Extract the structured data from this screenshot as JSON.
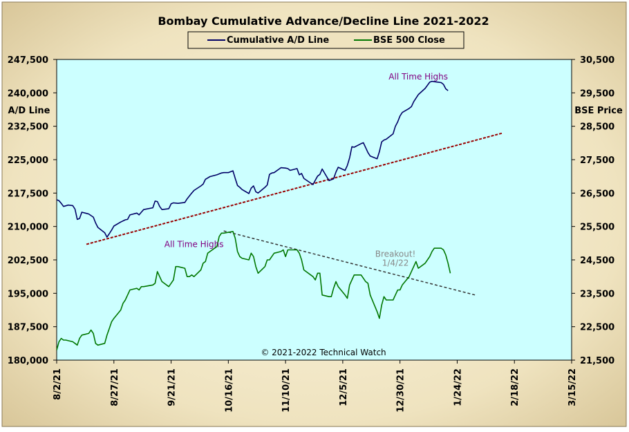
{
  "chart_data": {
    "type": "line",
    "title": "Bombay Cumulative Advance/Decline Line 2021-2022",
    "left_axis_label": "A/D Line",
    "right_axis_label": "BSE Price",
    "left_ylim": [
      180000,
      247500
    ],
    "right_ylim": [
      21500,
      30500
    ],
    "left_ticks": [
      "180,000",
      "187,500",
      "195,000",
      "202,500",
      "210,000",
      "217,500",
      "225,000",
      "232,500",
      "240,000",
      "247,500"
    ],
    "right_ticks": [
      "21,500",
      "22,500",
      "23,500",
      "24,500",
      "25,500",
      "26,500",
      "27,500",
      "28,500",
      "29,500",
      "30,500"
    ],
    "x_ticks": [
      "8/2/21",
      "8/27/21",
      "9/21/21",
      "10/16/21",
      "11/10/21",
      "12/5/21",
      "12/30/21",
      "1/24/22",
      "2/18/22",
      "3/15/22"
    ],
    "x_range": [
      "2021-08-02",
      "2022-03-15"
    ],
    "legend_position": "top-center",
    "grid": false,
    "colors": {
      "background": "#f0e6c8",
      "plot_background": "#ccffff",
      "ad_line": "#000066",
      "bse_line": "#007700",
      "ad_trend": "#990000",
      "bse_trend": "#333333",
      "annotation_purple": "#800080",
      "annotation_gray": "#888888"
    },
    "series": [
      {
        "name": "Cumulative A/D Line",
        "axis": "left",
        "points": [
          [
            "2021-08-02",
            216000
          ],
          [
            "2021-08-03",
            215800
          ],
          [
            "2021-08-04",
            215200
          ],
          [
            "2021-08-05",
            214500
          ],
          [
            "2021-08-07",
            214800
          ],
          [
            "2021-08-09",
            214700
          ],
          [
            "2021-08-10",
            213900
          ],
          [
            "2021-08-11",
            211600
          ],
          [
            "2021-08-12",
            211800
          ],
          [
            "2021-08-13",
            213200
          ],
          [
            "2021-08-16",
            212800
          ],
          [
            "2021-08-18",
            212100
          ],
          [
            "2021-08-19",
            210800
          ],
          [
            "2021-08-20",
            209800
          ],
          [
            "2021-08-23",
            208600
          ],
          [
            "2021-08-24",
            207600
          ],
          [
            "2021-08-25",
            208400
          ],
          [
            "2021-08-26",
            209200
          ],
          [
            "2021-08-27",
            210100
          ],
          [
            "2021-08-30",
            211000
          ],
          [
            "2021-09-01",
            211500
          ],
          [
            "2021-09-02",
            211600
          ],
          [
            "2021-09-03",
            212600
          ],
          [
            "2021-09-06",
            213000
          ],
          [
            "2021-09-07",
            212600
          ],
          [
            "2021-09-08",
            213200
          ],
          [
            "2021-09-09",
            213800
          ],
          [
            "2021-09-13",
            214200
          ],
          [
            "2021-09-14",
            215700
          ],
          [
            "2021-09-15",
            215600
          ],
          [
            "2021-09-16",
            214500
          ],
          [
            "2021-09-17",
            213800
          ],
          [
            "2021-09-20",
            214000
          ],
          [
            "2021-09-21",
            215100
          ],
          [
            "2021-09-22",
            215300
          ],
          [
            "2021-09-24",
            215200
          ],
          [
            "2021-09-27",
            215400
          ],
          [
            "2021-09-28",
            216200
          ],
          [
            "2021-09-30",
            217500
          ],
          [
            "2021-10-01",
            218100
          ],
          [
            "2021-10-04",
            219100
          ],
          [
            "2021-10-05",
            219500
          ],
          [
            "2021-10-06",
            220600
          ],
          [
            "2021-10-08",
            221200
          ],
          [
            "2021-10-11",
            221600
          ],
          [
            "2021-10-13",
            222000
          ],
          [
            "2021-10-14",
            222100
          ],
          [
            "2021-10-16",
            222100
          ],
          [
            "2021-10-18",
            222500
          ],
          [
            "2021-10-19",
            220800
          ],
          [
            "2021-10-20",
            219200
          ],
          [
            "2021-10-21",
            218800
          ],
          [
            "2021-10-22",
            218300
          ],
          [
            "2021-10-25",
            217400
          ],
          [
            "2021-10-26",
            218600
          ],
          [
            "2021-10-27",
            219100
          ],
          [
            "2021-10-28",
            217800
          ],
          [
            "2021-10-29",
            217500
          ],
          [
            "2021-11-01",
            218800
          ],
          [
            "2021-11-02",
            219300
          ],
          [
            "2021-11-03",
            221700
          ],
          [
            "2021-11-04",
            222000
          ],
          [
            "2021-11-05",
            222100
          ],
          [
            "2021-11-08",
            223200
          ],
          [
            "2021-11-10",
            223100
          ],
          [
            "2021-11-11",
            223000
          ],
          [
            "2021-11-12",
            222600
          ],
          [
            "2021-11-15",
            223000
          ],
          [
            "2021-11-16",
            221600
          ],
          [
            "2021-11-17",
            221900
          ],
          [
            "2021-11-18",
            220800
          ],
          [
            "2021-11-22",
            219400
          ],
          [
            "2021-11-23",
            220400
          ],
          [
            "2021-11-24",
            221300
          ],
          [
            "2021-11-25",
            221700
          ],
          [
            "2021-11-26",
            222900
          ],
          [
            "2021-11-29",
            220300
          ],
          [
            "2021-12-01",
            220700
          ],
          [
            "2021-12-02",
            222200
          ],
          [
            "2021-12-03",
            223300
          ],
          [
            "2021-12-06",
            222600
          ],
          [
            "2021-12-07",
            223700
          ],
          [
            "2021-12-08",
            225400
          ],
          [
            "2021-12-09",
            227900
          ],
          [
            "2021-12-10",
            227800
          ],
          [
            "2021-12-13",
            228600
          ],
          [
            "2021-12-14",
            228800
          ],
          [
            "2021-12-15",
            227700
          ],
          [
            "2021-12-16",
            226600
          ],
          [
            "2021-12-17",
            225800
          ],
          [
            "2021-12-20",
            225200
          ],
          [
            "2021-12-21",
            226800
          ],
          [
            "2021-12-22",
            229000
          ],
          [
            "2021-12-23",
            229400
          ],
          [
            "2021-12-24",
            229600
          ],
          [
            "2021-12-27",
            230800
          ],
          [
            "2021-12-28",
            232500
          ],
          [
            "2021-12-29",
            233500
          ],
          [
            "2021-12-30",
            234800
          ],
          [
            "2021-12-31",
            235600
          ],
          [
            "2022-01-03",
            236500
          ],
          [
            "2022-01-04",
            236900
          ],
          [
            "2022-01-05",
            238000
          ],
          [
            "2022-01-06",
            238800
          ],
          [
            "2022-01-07",
            239600
          ],
          [
            "2022-01-10",
            241000
          ],
          [
            "2022-01-11",
            241700
          ],
          [
            "2022-01-12",
            242400
          ],
          [
            "2022-01-13",
            242600
          ],
          [
            "2022-01-14",
            242500
          ],
          [
            "2022-01-17",
            242300
          ],
          [
            "2022-01-18",
            241900
          ],
          [
            "2022-01-19",
            240900
          ],
          [
            "2022-01-20",
            240500
          ]
        ]
      },
      {
        "name": "BSE 500 Close",
        "axis": "right",
        "points": [
          [
            "2021-08-02",
            21800
          ],
          [
            "2021-08-03",
            22050
          ],
          [
            "2021-08-04",
            22150
          ],
          [
            "2021-08-05",
            22100
          ],
          [
            "2021-08-06",
            22100
          ],
          [
            "2021-08-09",
            22050
          ],
          [
            "2021-08-10",
            22000
          ],
          [
            "2021-08-11",
            21950
          ],
          [
            "2021-08-12",
            22150
          ],
          [
            "2021-08-13",
            22250
          ],
          [
            "2021-08-16",
            22300
          ],
          [
            "2021-08-17",
            22400
          ],
          [
            "2021-08-18",
            22300
          ],
          [
            "2021-08-19",
            22000
          ],
          [
            "2021-08-20",
            21950
          ],
          [
            "2021-08-23",
            22000
          ],
          [
            "2021-08-24",
            22250
          ],
          [
            "2021-08-25",
            22450
          ],
          [
            "2021-08-26",
            22650
          ],
          [
            "2021-08-27",
            22750
          ],
          [
            "2021-08-30",
            23000
          ],
          [
            "2021-08-31",
            23200
          ],
          [
            "2021-09-01",
            23300
          ],
          [
            "2021-09-02",
            23450
          ],
          [
            "2021-09-03",
            23600
          ],
          [
            "2021-09-06",
            23650
          ],
          [
            "2021-09-07",
            23600
          ],
          [
            "2021-09-08",
            23700
          ],
          [
            "2021-09-09",
            23700
          ],
          [
            "2021-09-13",
            23750
          ],
          [
            "2021-09-14",
            23800
          ],
          [
            "2021-09-15",
            24150
          ],
          [
            "2021-09-16",
            24000
          ],
          [
            "2021-09-17",
            23850
          ],
          [
            "2021-09-20",
            23700
          ],
          [
            "2021-09-21",
            23800
          ],
          [
            "2021-09-22",
            23900
          ],
          [
            "2021-09-23",
            24300
          ],
          [
            "2021-09-24",
            24300
          ],
          [
            "2021-09-27",
            24250
          ],
          [
            "2021-09-28",
            24000
          ],
          [
            "2021-09-29",
            24000
          ],
          [
            "2021-09-30",
            24050
          ],
          [
            "2021-10-01",
            24000
          ],
          [
            "2021-10-04",
            24200
          ],
          [
            "2021-10-05",
            24400
          ],
          [
            "2021-10-06",
            24450
          ],
          [
            "2021-10-07",
            24700
          ],
          [
            "2021-10-08",
            24750
          ],
          [
            "2021-10-11",
            24900
          ],
          [
            "2021-10-12",
            25200
          ],
          [
            "2021-10-13",
            25300
          ],
          [
            "2021-10-14",
            25300
          ],
          [
            "2021-10-18",
            25350
          ],
          [
            "2021-10-19",
            25150
          ],
          [
            "2021-10-20",
            24750
          ],
          [
            "2021-10-21",
            24600
          ],
          [
            "2021-10-22",
            24550
          ],
          [
            "2021-10-25",
            24500
          ],
          [
            "2021-10-26",
            24700
          ],
          [
            "2021-10-27",
            24600
          ],
          [
            "2021-10-28",
            24300
          ],
          [
            "2021-10-29",
            24100
          ],
          [
            "2021-11-01",
            24300
          ],
          [
            "2021-11-02",
            24500
          ],
          [
            "2021-11-03",
            24500
          ],
          [
            "2021-11-04",
            24600
          ],
          [
            "2021-11-05",
            24700
          ],
          [
            "2021-11-08",
            24750
          ],
          [
            "2021-11-09",
            24800
          ],
          [
            "2021-11-10",
            24600
          ],
          [
            "2021-11-11",
            24800
          ],
          [
            "2021-11-12",
            24800
          ],
          [
            "2021-11-15",
            24800
          ],
          [
            "2021-11-16",
            24700
          ],
          [
            "2021-11-17",
            24500
          ],
          [
            "2021-11-18",
            24200
          ],
          [
            "2021-11-22",
            24000
          ],
          [
            "2021-11-23",
            23900
          ],
          [
            "2021-11-24",
            24100
          ],
          [
            "2021-11-25",
            24100
          ],
          [
            "2021-11-26",
            23450
          ],
          [
            "2021-11-29",
            23400
          ],
          [
            "2021-11-30",
            23400
          ],
          [
            "2021-12-01",
            23650
          ],
          [
            "2021-12-02",
            23850
          ],
          [
            "2021-12-03",
            23700
          ],
          [
            "2021-12-06",
            23450
          ],
          [
            "2021-12-07",
            23350
          ],
          [
            "2021-12-08",
            23750
          ],
          [
            "2021-12-09",
            23900
          ],
          [
            "2021-12-10",
            24050
          ],
          [
            "2021-12-13",
            24050
          ],
          [
            "2021-12-14",
            23950
          ],
          [
            "2021-12-15",
            23850
          ],
          [
            "2021-12-16",
            23800
          ],
          [
            "2021-12-17",
            23450
          ],
          [
            "2021-12-20",
            22950
          ],
          [
            "2021-12-21",
            22750
          ],
          [
            "2021-12-22",
            23150
          ],
          [
            "2021-12-23",
            23400
          ],
          [
            "2021-12-24",
            23300
          ],
          [
            "2021-12-27",
            23300
          ],
          [
            "2021-12-28",
            23450
          ],
          [
            "2021-12-29",
            23600
          ],
          [
            "2021-12-30",
            23600
          ],
          [
            "2021-12-31",
            23750
          ],
          [
            "2022-01-03",
            24000
          ],
          [
            "2022-01-04",
            24150
          ],
          [
            "2022-01-05",
            24300
          ],
          [
            "2022-01-06",
            24450
          ],
          [
            "2022-01-07",
            24250
          ],
          [
            "2022-01-10",
            24400
          ],
          [
            "2022-01-11",
            24500
          ],
          [
            "2022-01-12",
            24600
          ],
          [
            "2022-01-13",
            24750
          ],
          [
            "2022-01-14",
            24850
          ],
          [
            "2022-01-17",
            24850
          ],
          [
            "2022-01-18",
            24800
          ],
          [
            "2022-01-19",
            24650
          ],
          [
            "2022-01-20",
            24400
          ],
          [
            "2022-01-21",
            24100
          ]
        ]
      }
    ],
    "trendlines": [
      {
        "axis": "left",
        "style": "dashed",
        "from": [
          "2021-08-15",
          206000
        ],
        "to": [
          "2022-02-13",
          231000
        ]
      },
      {
        "axis": "left",
        "style": "dashed",
        "from": [
          "2021-10-14",
          209000
        ],
        "to": [
          "2022-02-01",
          194600
        ]
      }
    ],
    "annotations": [
      {
        "text": "All Time Highs",
        "x": "2022-01-07",
        "y": 243000,
        "axis": "left",
        "color": "purple"
      },
      {
        "text": "All Time Highs",
        "x": "2021-10-01",
        "y": 205400,
        "axis": "left",
        "color": "purple"
      },
      {
        "text": "Breakout!",
        "x": "2021-12-28",
        "y": 203200,
        "axis": "left",
        "color": "gray"
      },
      {
        "text": "1/4/22",
        "x": "2021-12-28",
        "y": 201200,
        "axis": "left",
        "color": "gray"
      }
    ],
    "copyright": "© 2021-2022  Technical Watch"
  }
}
